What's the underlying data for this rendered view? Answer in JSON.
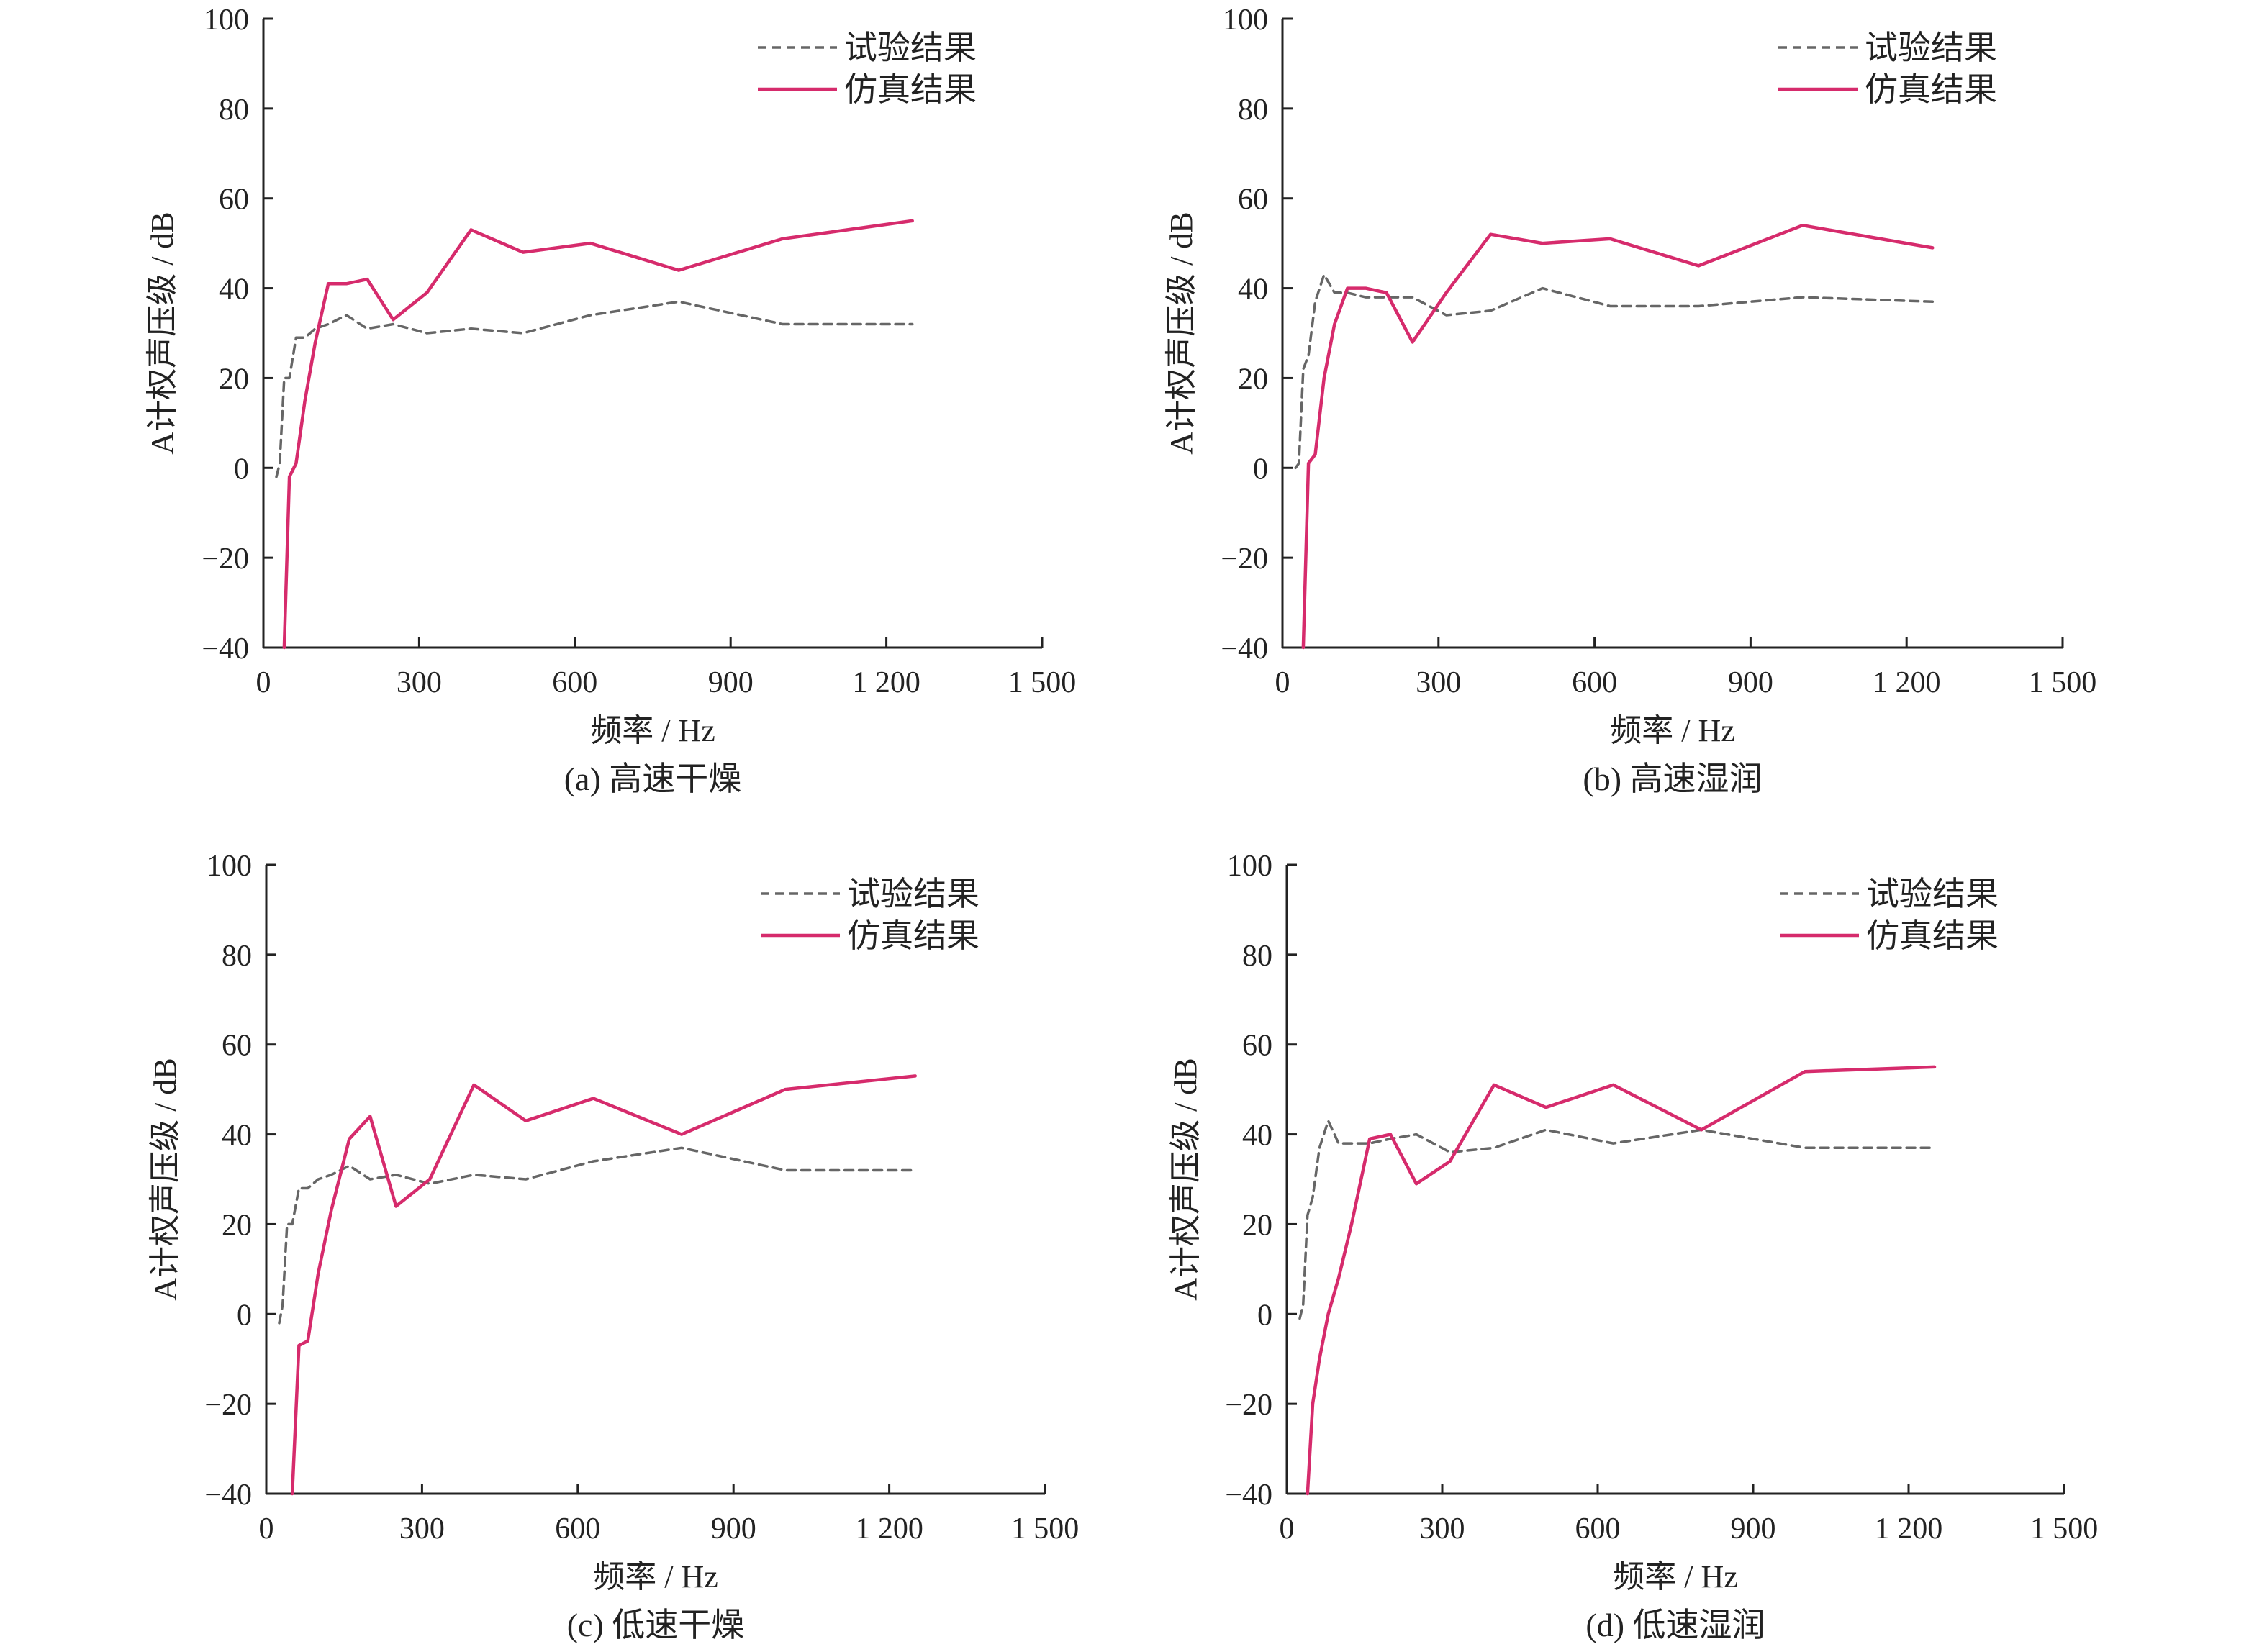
{
  "chart_data": [
    {
      "type": "line",
      "caption": "(a) 高速干燥",
      "xlabel": "频率 / Hz",
      "ylabel": "A计权声压级 / dB",
      "xlim": [
        0,
        1500
      ],
      "ylim": [
        -40,
        100
      ],
      "xticks": [
        0,
        300,
        600,
        900,
        1200,
        1500
      ],
      "xtick_labels": [
        "0",
        "300",
        "600",
        "900",
        "1 200",
        "1 500"
      ],
      "yticks": [
        -40,
        -20,
        0,
        20,
        40,
        60,
        80,
        100
      ],
      "ytick_labels": [
        "−40",
        "−20",
        "0",
        "20",
        "40",
        "60",
        "80",
        "100"
      ],
      "grid": false,
      "legend": "top-right",
      "series": [
        {
          "name": "试验结果",
          "style": "dashed",
          "color": "#666666",
          "x": [
            25,
            31.5,
            40,
            50,
            63,
            80,
            100,
            125,
            160,
            200,
            250,
            315,
            400,
            500,
            630,
            800,
            1000,
            1250
          ],
          "y": [
            -2,
            1,
            20,
            20,
            29,
            29,
            31,
            32,
            34,
            31,
            32,
            30,
            31,
            30,
            34,
            37,
            32,
            32
          ]
        },
        {
          "name": "仿真结果",
          "style": "solid",
          "color": "#d62b6c",
          "x": [
            40,
            50,
            63,
            80,
            100,
            125,
            160,
            200,
            250,
            315,
            400,
            500,
            630,
            800,
            1000,
            1250
          ],
          "y": [
            -40,
            -2,
            1,
            15,
            28,
            41,
            41,
            42,
            33,
            39,
            53,
            48,
            50,
            44,
            51,
            55
          ]
        }
      ]
    },
    {
      "type": "line",
      "caption": "(b) 高速湿润",
      "xlabel": "频率 / Hz",
      "ylabel": "A计权声压级 / dB",
      "xlim": [
        0,
        1500
      ],
      "ylim": [
        -40,
        100
      ],
      "xticks": [
        0,
        300,
        600,
        900,
        1200,
        1500
      ],
      "xtick_labels": [
        "0",
        "300",
        "600",
        "900",
        "1 200",
        "1 500"
      ],
      "yticks": [
        -40,
        -20,
        0,
        20,
        40,
        60,
        80,
        100
      ],
      "ytick_labels": [
        "−40",
        "−20",
        "0",
        "20",
        "40",
        "60",
        "80",
        "100"
      ],
      "grid": false,
      "legend": "top-right",
      "series": [
        {
          "name": "试验结果",
          "style": "dashed",
          "color": "#666666",
          "x": [
            25,
            31.5,
            40,
            50,
            63,
            80,
            100,
            125,
            160,
            200,
            250,
            315,
            400,
            500,
            630,
            800,
            1000,
            1250
          ],
          "y": [
            0,
            1,
            22,
            25,
            37,
            43,
            39,
            39,
            38,
            38,
            38,
            34,
            35,
            40,
            36,
            36,
            38,
            37
          ]
        },
        {
          "name": "仿真结果",
          "style": "solid",
          "color": "#d62b6c",
          "x": [
            40,
            50,
            63,
            80,
            100,
            125,
            160,
            200,
            250,
            315,
            400,
            500,
            630,
            800,
            1000,
            1250
          ],
          "y": [
            -40,
            1,
            3,
            20,
            32,
            40,
            40,
            39,
            28,
            39,
            52,
            50,
            51,
            45,
            54,
            49
          ]
        }
      ]
    },
    {
      "type": "line",
      "caption": "(c) 低速干燥",
      "xlabel": "频率 / Hz",
      "ylabel": "A计权声压级 / dB",
      "xlim": [
        0,
        1500
      ],
      "ylim": [
        -40,
        100
      ],
      "xticks": [
        0,
        300,
        600,
        900,
        1200,
        1500
      ],
      "xtick_labels": [
        "0",
        "300",
        "600",
        "900",
        "1 200",
        "1 500"
      ],
      "yticks": [
        -40,
        -20,
        0,
        20,
        40,
        60,
        80,
        100
      ],
      "ytick_labels": [
        "−40",
        "−20",
        "0",
        "20",
        "40",
        "60",
        "80",
        "100"
      ],
      "grid": false,
      "legend": "top-right",
      "series": [
        {
          "name": "试验结果",
          "style": "dashed",
          "color": "#666666",
          "x": [
            25,
            31.5,
            40,
            50,
            63,
            80,
            100,
            125,
            160,
            200,
            250,
            315,
            400,
            500,
            630,
            800,
            1000,
            1250
          ],
          "y": [
            -2,
            2,
            20,
            20,
            28,
            28,
            30,
            31,
            33,
            30,
            31,
            29,
            31,
            30,
            34,
            37,
            32,
            32
          ]
        },
        {
          "name": "仿真结果",
          "style": "solid",
          "color": "#d62b6c",
          "x": [
            50,
            63,
            80,
            100,
            125,
            160,
            200,
            250,
            315,
            400,
            500,
            630,
            800,
            1000,
            1250
          ],
          "y": [
            -40,
            -7,
            -6,
            9,
            23,
            39,
            44,
            24,
            30,
            51,
            43,
            48,
            40,
            50,
            53
          ]
        }
      ]
    },
    {
      "type": "line",
      "caption": "(d) 低速湿润",
      "xlabel": "频率 / Hz",
      "ylabel": "A计权声压级 / dB",
      "xlim": [
        0,
        1500
      ],
      "ylim": [
        -40,
        100
      ],
      "xticks": [
        0,
        300,
        600,
        900,
        1200,
        1500
      ],
      "xtick_labels": [
        "0",
        "300",
        "600",
        "900",
        "1 200",
        "1 500"
      ],
      "yticks": [
        -40,
        -20,
        0,
        20,
        40,
        60,
        80,
        100
      ],
      "ytick_labels": [
        "−40",
        "−20",
        "0",
        "20",
        "40",
        "60",
        "80",
        "100"
      ],
      "grid": false,
      "legend": "top-right",
      "series": [
        {
          "name": "试验结果",
          "style": "dashed",
          "color": "#666666",
          "x": [
            25,
            31.5,
            40,
            50,
            63,
            80,
            100,
            125,
            160,
            200,
            250,
            315,
            400,
            500,
            630,
            800,
            1000,
            1250
          ],
          "y": [
            -1,
            2,
            22,
            26,
            37,
            43,
            38,
            38,
            38,
            39,
            40,
            36,
            37,
            41,
            38,
            41,
            37,
            37
          ]
        },
        {
          "name": "仿真结果",
          "style": "solid",
          "color": "#d62b6c",
          "x": [
            40,
            50,
            63,
            80,
            100,
            125,
            160,
            200,
            250,
            315,
            400,
            500,
            630,
            800,
            1000,
            1250
          ],
          "y": [
            -40,
            -20,
            -10,
            0,
            8,
            20,
            39,
            40,
            29,
            34,
            51,
            46,
            51,
            41,
            54,
            55
          ]
        }
      ]
    }
  ]
}
